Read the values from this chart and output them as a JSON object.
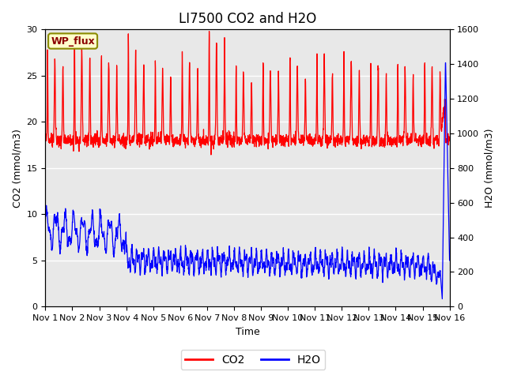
{
  "title": "LI7500 CO2 and H2O",
  "xlabel": "Time",
  "ylabel_left": "CO2 (mmol/m3)",
  "ylabel_right": "H2O (mmol/m3)",
  "ylim_left": [
    0,
    30
  ],
  "ylim_right": [
    0,
    1600
  ],
  "xlim": [
    0,
    15
  ],
  "xtick_labels": [
    "Nov 1",
    "Nov 2",
    "Nov 3",
    "Nov 4",
    "Nov 5",
    "Nov 6",
    "Nov 7",
    "Nov 8",
    "Nov 9",
    "Nov 10",
    "Nov 11",
    "Nov 12",
    "Nov 13",
    "Nov 14",
    "Nov 15",
    "Nov 16"
  ],
  "xtick_positions": [
    0,
    1,
    2,
    3,
    4,
    5,
    6,
    7,
    8,
    9,
    10,
    11,
    12,
    13,
    14,
    15
  ],
  "yticks_left": [
    0,
    5,
    10,
    15,
    20,
    25,
    30
  ],
  "yticks_right": [
    0,
    200,
    400,
    600,
    800,
    1000,
    1200,
    1400,
    1600
  ],
  "co2_color": "red",
  "h2o_color": "blue",
  "plot_bg_color": "#e8e8e8",
  "fig_bg_color": "#ffffff",
  "annotation_text": "WP_flux",
  "annotation_facecolor": "#ffffcc",
  "annotation_edgecolor": "#8b8b00",
  "title_fontsize": 12,
  "axis_fontsize": 9,
  "tick_fontsize": 8,
  "legend_fontsize": 10,
  "line_width": 0.9
}
